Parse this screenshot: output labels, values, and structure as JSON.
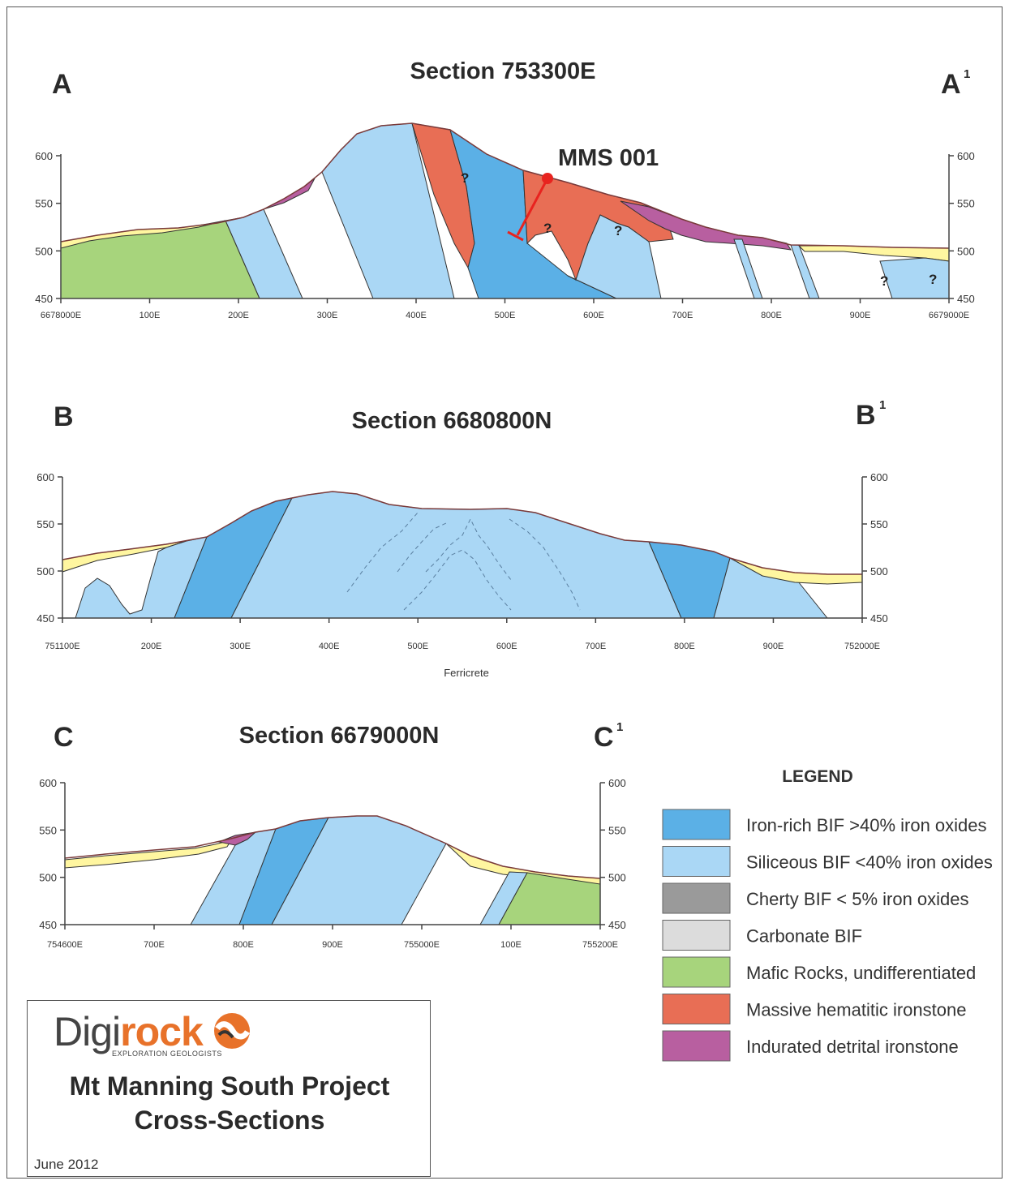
{
  "colors": {
    "iron_rich_bif": "#5bb0e6",
    "siliceous_bif": "#aad7f5",
    "cherty_bif": "#9a9a9a",
    "carbonate_bif": "#dcdcdc",
    "mafic_rocks": "#a7d47c",
    "massive_hematitic": "#e86e55",
    "indurated_detrital": "#b85fa0",
    "ferricrete_yellow": "#fff6a0",
    "drill_hole": "#e8231f"
  },
  "section_a": {
    "title": "Section 753300E",
    "left_label": "A",
    "right_label": "A",
    "right_sup": "1",
    "hole_label": "MMS 001",
    "question_mark": "?",
    "y_ticks": [
      "600",
      "550",
      "500",
      "450"
    ],
    "x_ticks": [
      "6678000E",
      "100E",
      "200E",
      "300E",
      "400E",
      "500E",
      "600E",
      "700E",
      "800E",
      "900E",
      "6679000E"
    ]
  },
  "section_b": {
    "title": "Section 6680800N",
    "left_label": "B",
    "right_label": "B",
    "right_sup": "1",
    "y_ticks": [
      "600",
      "550",
      "500",
      "450"
    ],
    "x_ticks": [
      "751100E",
      "200E",
      "300E",
      "400E",
      "500E",
      "600E",
      "700E",
      "800E",
      "900E",
      "752000E"
    ],
    "annotation": "Ferricrete"
  },
  "section_c": {
    "title": "Section 6679000N",
    "left_label": "C",
    "right_label": "C",
    "right_sup": "1",
    "y_ticks": [
      "600",
      "550",
      "500",
      "450"
    ],
    "x_ticks": [
      "754600E",
      "700E",
      "800E",
      "900E",
      "755000E",
      "100E",
      "755200E"
    ]
  },
  "legend": {
    "title": "LEGEND",
    "items": [
      {
        "label": "Iron-rich BIF >40% iron oxides",
        "color": "#5bb0e6"
      },
      {
        "label": "Siliceous BIF <40% iron oxides",
        "color": "#aad7f5"
      },
      {
        "label": "Cherty BIF < 5% iron oxides",
        "color": "#9a9a9a"
      },
      {
        "label": "Carbonate BIF",
        "color": "#dcdcdc"
      },
      {
        "label": "Mafic Rocks, undifferentiated",
        "color": "#a7d47c"
      },
      {
        "label": "Massive hematitic ironstone",
        "color": "#e86e55"
      },
      {
        "label": "Indurated detrital ironstone",
        "color": "#b85fa0"
      }
    ]
  },
  "title_block": {
    "logo_part1": "Digi",
    "logo_part2": "rock",
    "logo_subtitle": "EXPLORATION GEOLOGISTS",
    "project_line1": "Mt Manning South Project",
    "project_line2": "Cross-Sections",
    "date": "June 2012"
  }
}
